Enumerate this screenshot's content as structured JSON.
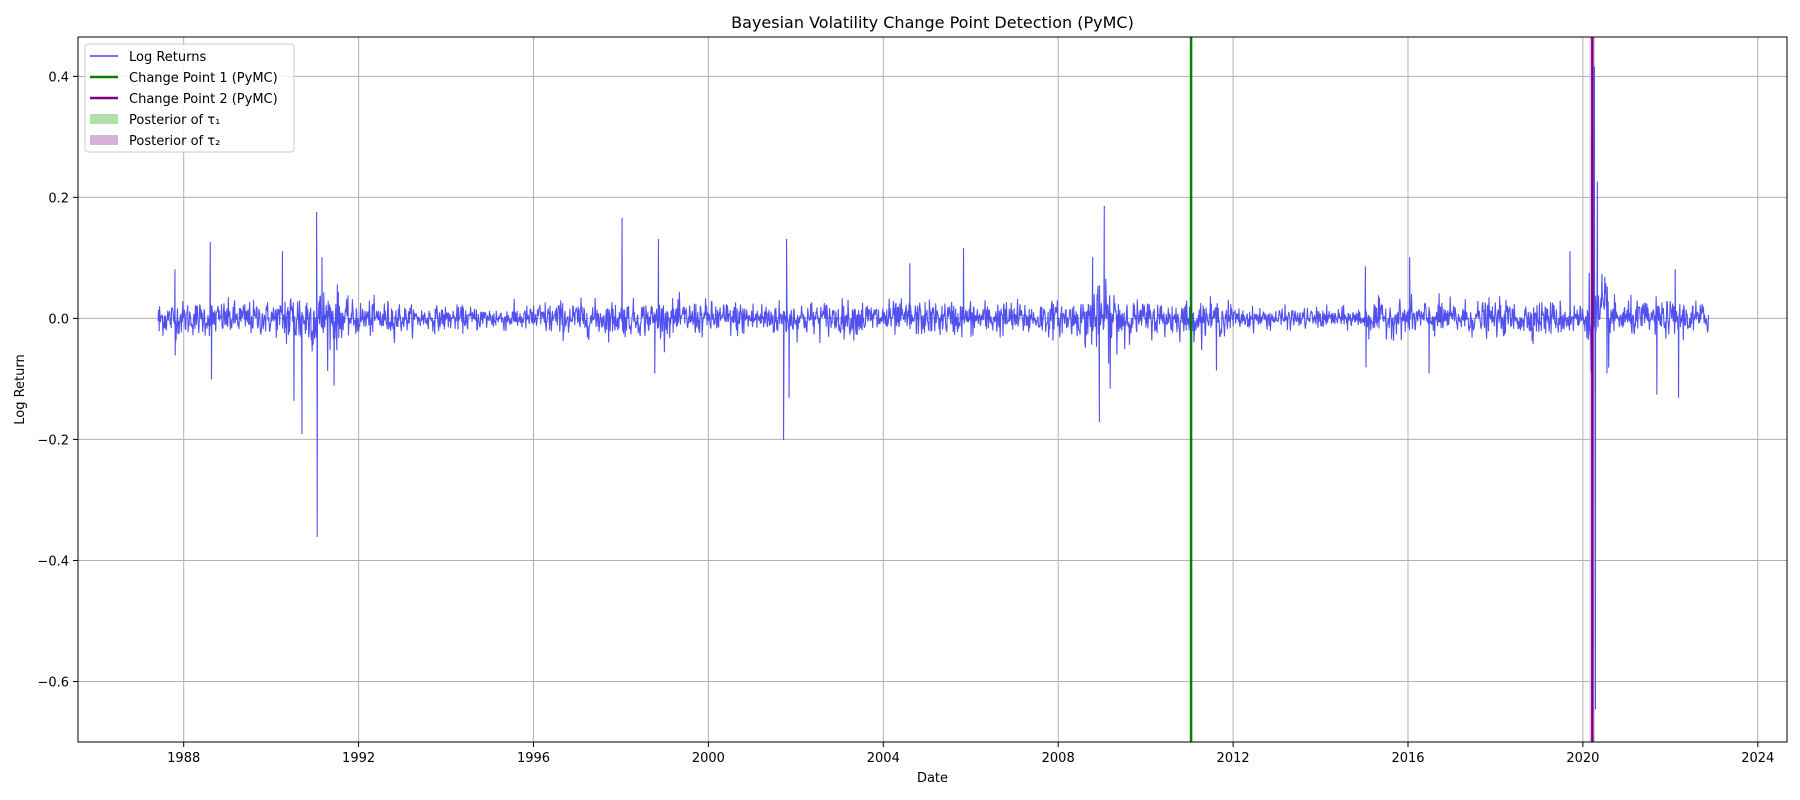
{
  "chart_data": {
    "type": "line",
    "title": "Bayesian Volatility Change Point Detection (PyMC)",
    "xlabel": "Date",
    "ylabel": "Log Return",
    "xlim": [
      "1985-08-01",
      "2024-09-01"
    ],
    "ylim": [
      -0.7,
      0.465
    ],
    "grid": true,
    "legend_position": "top-left",
    "x_ticks": [
      "1988",
      "1992",
      "1996",
      "2000",
      "2004",
      "2008",
      "2012",
      "2016",
      "2020",
      "2024"
    ],
    "y_ticks": [
      0.4,
      0.2,
      0.0,
      -0.2,
      -0.4,
      -0.6
    ],
    "y_tick_labels": [
      "0.4",
      "0.2",
      "0.0",
      "−0.2",
      "−0.4",
      "−0.6"
    ],
    "series": [
      {
        "name": "Log Returns",
        "color": "#4848f0",
        "x_range": [
          "1987-06-01",
          "2022-11-15"
        ],
        "baseline_amplitude": 0.025,
        "points": [
          {
            "x": "1987-06-10",
            "y": -0.02
          },
          {
            "x": "1987-10-20",
            "y": 0.08
          },
          {
            "x": "1987-10-22",
            "y": -0.06
          },
          {
            "x": "1988-08-10",
            "y": 0.125
          },
          {
            "x": "1988-08-20",
            "y": -0.1
          },
          {
            "x": "1990-04-05",
            "y": 0.11
          },
          {
            "x": "1990-07-10",
            "y": -0.135
          },
          {
            "x": "1990-09-15",
            "y": -0.19
          },
          {
            "x": "1991-01-15",
            "y": 0.175
          },
          {
            "x": "1991-01-20",
            "y": -0.36
          },
          {
            "x": "1991-03-01",
            "y": 0.1
          },
          {
            "x": "1991-06-10",
            "y": -0.11
          },
          {
            "x": "1998-01-10",
            "y": 0.165
          },
          {
            "x": "1998-10-10",
            "y": -0.09
          },
          {
            "x": "1998-11-10",
            "y": 0.13
          },
          {
            "x": "2001-09-20",
            "y": -0.2
          },
          {
            "x": "2001-10-15",
            "y": 0.13
          },
          {
            "x": "2001-11-05",
            "y": -0.13
          },
          {
            "x": "2004-08-10",
            "y": 0.09
          },
          {
            "x": "2005-11-01",
            "y": 0.115
          },
          {
            "x": "2008-10-15",
            "y": 0.1
          },
          {
            "x": "2008-12-10",
            "y": -0.17
          },
          {
            "x": "2009-01-20",
            "y": 0.185
          },
          {
            "x": "2009-03-10",
            "y": -0.115
          },
          {
            "x": "2011-08-15",
            "y": -0.085
          },
          {
            "x": "2015-01-10",
            "y": 0.085
          },
          {
            "x": "2015-01-15",
            "y": -0.08
          },
          {
            "x": "2016-01-15",
            "y": 0.1
          },
          {
            "x": "2016-06-25",
            "y": -0.09
          },
          {
            "x": "2019-09-15",
            "y": 0.11
          },
          {
            "x": "2020-03-16",
            "y": 0.3
          },
          {
            "x": "2020-03-20",
            "y": -0.25
          },
          {
            "x": "2020-04-06",
            "y": 0.415
          },
          {
            "x": "2020-04-15",
            "y": -0.645
          },
          {
            "x": "2020-05-01",
            "y": 0.225
          },
          {
            "x": "2020-07-20",
            "y": -0.09
          },
          {
            "x": "2021-09-10",
            "y": -0.125
          },
          {
            "x": "2022-02-10",
            "y": 0.08
          },
          {
            "x": "2022-03-10",
            "y": -0.13
          }
        ]
      },
      {
        "name": "Change Point 1 (PyMC)",
        "color": "#008000",
        "type": "vline",
        "x": "2011-01-15"
      },
      {
        "name": "Change Point 2 (PyMC)",
        "color": "#800080",
        "type": "vline",
        "x": "2020-03-20"
      },
      {
        "name": "Posterior of τ₁",
        "color": "#b2dfaa",
        "type": "band",
        "x_range": [
          "2011-01-10",
          "2011-01-20"
        ]
      },
      {
        "name": "Posterior of τ₂",
        "color": "#d8b0dc",
        "type": "band",
        "x_range": [
          "2020-02-25",
          "2020-04-10"
        ]
      }
    ]
  }
}
